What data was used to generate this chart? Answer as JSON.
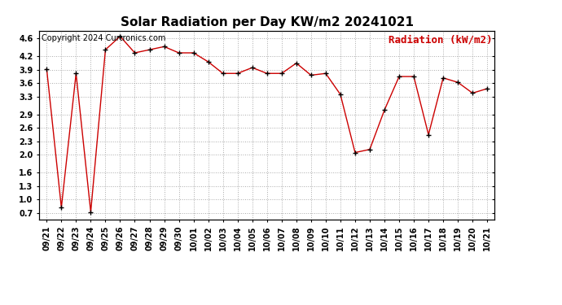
{
  "title": "Solar Radiation per Day KW/m2 20241021",
  "copyright": "Copyright 2024 Curtronics.com",
  "legend_label": "Radiation (kW/m2)",
  "dates": [
    "09/21",
    "09/22",
    "09/23",
    "09/24",
    "09/25",
    "09/26",
    "09/27",
    "09/28",
    "09/29",
    "09/30",
    "10/01",
    "10/02",
    "10/03",
    "10/04",
    "10/05",
    "10/06",
    "10/07",
    "10/08",
    "10/09",
    "10/10",
    "10/11",
    "10/12",
    "10/13",
    "10/14",
    "10/15",
    "10/16",
    "10/17",
    "10/18",
    "10/19",
    "10/20",
    "10/21"
  ],
  "values": [
    3.92,
    0.82,
    3.82,
    0.72,
    4.35,
    4.65,
    4.28,
    4.35,
    4.42,
    4.28,
    4.28,
    4.08,
    3.82,
    3.82,
    3.95,
    3.82,
    3.82,
    4.05,
    3.78,
    3.82,
    3.35,
    2.05,
    2.12,
    3.0,
    3.75,
    3.75,
    2.45,
    3.72,
    3.62,
    3.38,
    3.48
  ],
  "line_color": "#cc0000",
  "marker_color": "#000000",
  "bg_color": "#ffffff",
  "grid_color": "#aaaaaa",
  "title_fontsize": 11,
  "copyright_fontsize": 7,
  "legend_fontsize": 9,
  "tick_fontsize": 7,
  "yticks": [
    0.7,
    1.0,
    1.3,
    1.6,
    2.0,
    2.3,
    2.6,
    2.9,
    3.3,
    3.6,
    3.9,
    4.2,
    4.6
  ],
  "ylim": [
    0.55,
    4.78
  ]
}
